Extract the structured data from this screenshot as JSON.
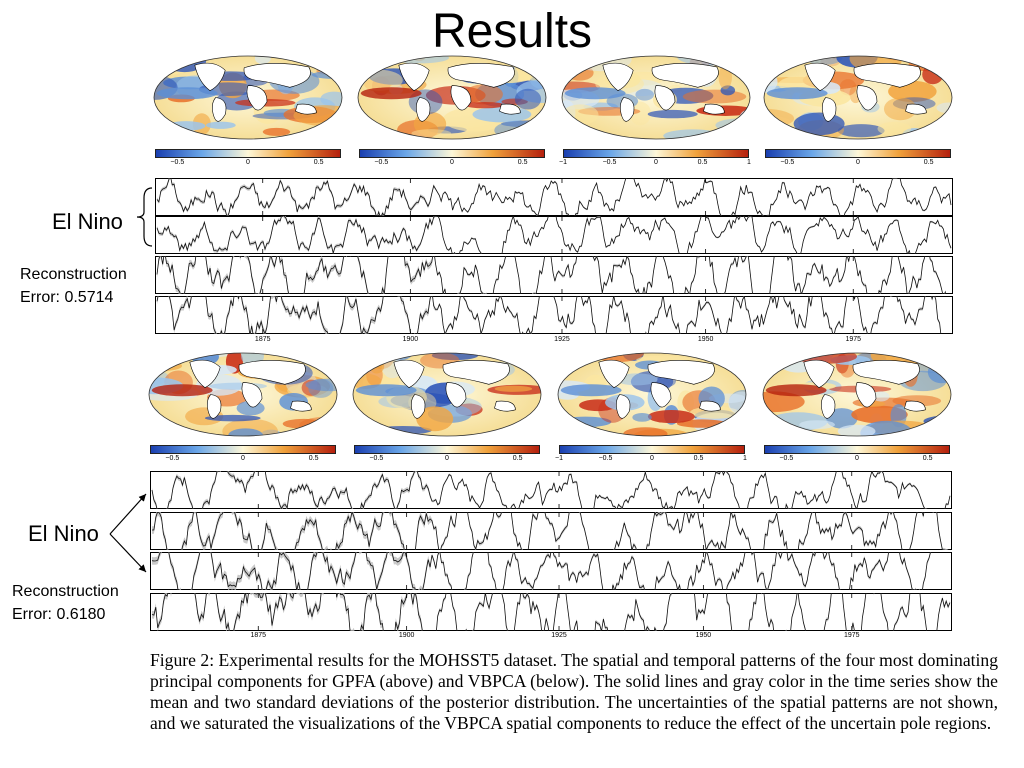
{
  "slide_title": "Results",
  "gpfa": {
    "label_el_nino": "El Nino",
    "label_recon": "Reconstruction",
    "label_error": "Error: 0.5714",
    "colorbars": [
      [
        "-0.5",
        "0",
        "0.5"
      ],
      [
        "-0.5",
        "0",
        "0.5"
      ],
      [
        "-1",
        "-0.5",
        "0",
        "0.5",
        "1"
      ],
      [
        "-0.5",
        "0",
        "0.5"
      ]
    ],
    "years": [
      "1875",
      "1900",
      "1925",
      "1950",
      "1975"
    ]
  },
  "vbpca": {
    "label_el_nino": "El Nino",
    "label_recon": "Reconstruction",
    "label_error": "Error: 0.6180",
    "colorbars": [
      [
        "-0.5",
        "0",
        "0.5"
      ],
      [
        "-0.5",
        "0",
        "0.5"
      ],
      [
        "-1",
        "-0.5",
        "0",
        "0.5",
        "1"
      ],
      [
        "-0.5",
        "0",
        "0.5"
      ]
    ],
    "years": [
      "1875",
      "1900",
      "1925",
      "1950",
      "1975"
    ]
  },
  "caption": "Figure 2: Experimental results for the MOHSST5 dataset. The spatial and temporal patterns of the four most dominating principal components for GPFA (above) and VBPCA (below). The solid lines and gray color in the time series show the mean and two standard deviations of the posterior distribution. The uncertainties of the spatial patterns are not shown, and we saturated the visualizations of the VBPCA spatial components to reduce the effect of the uncertain pole regions.",
  "colors": {
    "cold": "#1a3fb0",
    "neutral": "#fdf7d8",
    "warm": "#b5200e",
    "land": "#ffffff"
  }
}
